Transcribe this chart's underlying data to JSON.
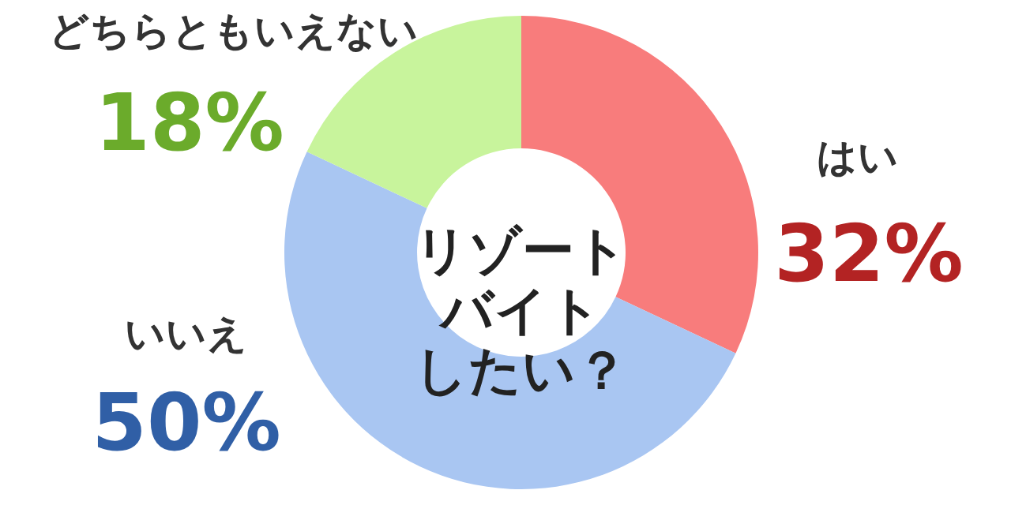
{
  "chart_data": {
    "type": "donut",
    "title": "リゾートバイトしたい？",
    "categories": [
      "はい",
      "いいえ",
      "どちらともいえない"
    ],
    "values": [
      32,
      50,
      18
    ],
    "colors": [
      "#f87c7c",
      "#a9c6f2",
      "#c8f49c"
    ],
    "value_labels": [
      "32%",
      "50%",
      "18%"
    ]
  }
}
